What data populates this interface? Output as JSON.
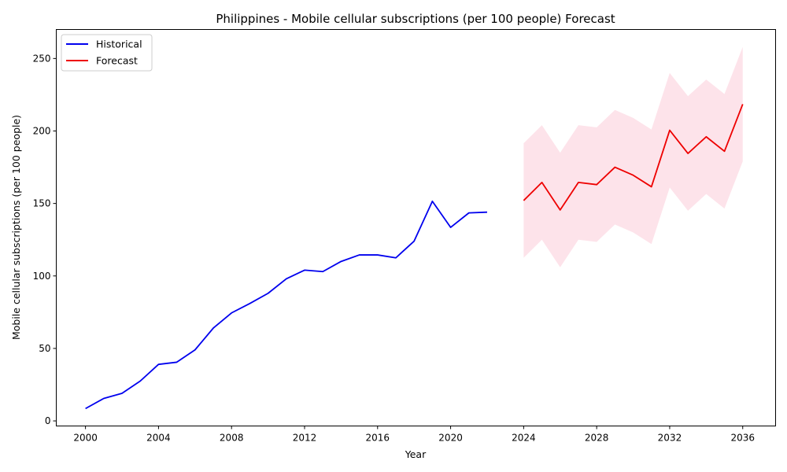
{
  "chart_data": {
    "type": "line",
    "title": "Philippines - Mobile cellular subscriptions (per 100 people) Forecast",
    "xlabel": "Year",
    "ylabel": "Mobile cellular subscriptions (per 100 people)",
    "xlim": [
      1998.4,
      2037.8
    ],
    "ylim": [
      -3.5,
      270
    ],
    "xticks": [
      2000,
      2004,
      2008,
      2012,
      2016,
      2020,
      2024,
      2028,
      2032,
      2036
    ],
    "yticks": [
      0,
      50,
      100,
      150,
      200,
      250
    ],
    "grid": false,
    "legend_position": "upper-left",
    "series": [
      {
        "name": "Historical",
        "color": "#0000ee",
        "x": [
          2000,
          2001,
          2002,
          2003,
          2004,
          2005,
          2006,
          2007,
          2008,
          2009,
          2010,
          2011,
          2012,
          2013,
          2014,
          2015,
          2016,
          2017,
          2018,
          2019,
          2020,
          2021,
          2022
        ],
        "y": [
          8.5,
          15.5,
          19,
          27.5,
          39,
          40.5,
          49,
          64,
          74.5,
          81,
          88,
          98,
          104,
          103,
          110,
          114.5,
          114.5,
          112.5,
          124,
          151.5,
          133.5,
          143.5,
          144
        ]
      },
      {
        "name": "Forecast",
        "color": "#ee0000",
        "x": [
          2024,
          2025,
          2026,
          2027,
          2028,
          2029,
          2030,
          2031,
          2032,
          2033,
          2034,
          2035,
          2036
        ],
        "y": [
          152,
          164.5,
          145.5,
          164.5,
          163,
          175,
          169.5,
          161.5,
          200.5,
          184.5,
          196,
          186,
          218.5
        ]
      }
    ],
    "confidence_band": {
      "color": "#fde3ea",
      "x": [
        2024,
        2025,
        2026,
        2027,
        2028,
        2029,
        2030,
        2031,
        2032,
        2033,
        2034,
        2035,
        2036
      ],
      "lower": [
        112.5,
        125,
        106,
        125,
        123.5,
        135.5,
        130,
        122,
        161,
        145,
        156.5,
        146.5,
        179
      ],
      "upper": [
        191.5,
        204,
        185,
        204,
        202.5,
        214.5,
        209,
        201,
        240,
        224,
        235.5,
        225.5,
        258
      ]
    }
  }
}
